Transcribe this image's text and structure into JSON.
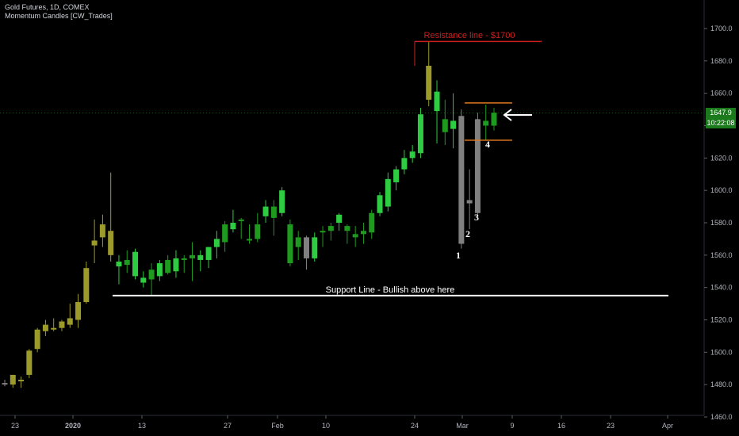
{
  "header": {
    "symbol_line": "Gold Futures, 1D, COMEX",
    "indicator_line": "Momentum Candles [CW_Trades]"
  },
  "price_axis": {
    "ticks": [
      "1700.0",
      "1680.0",
      "1660.0",
      "1640.0",
      "1620.0",
      "1600.0",
      "1580.0",
      "1560.0",
      "1540.0",
      "1520.0",
      "1500.0",
      "1480.0",
      "1460.0"
    ]
  },
  "last_price": {
    "value": "1647.9",
    "countdown": "10:22:08"
  },
  "time_axis": {
    "ticks": [
      "23",
      "2020",
      "13",
      "27",
      "Feb",
      "10",
      "24",
      "Mar",
      "9",
      "16",
      "23",
      "Apr"
    ]
  },
  "colors": {
    "bull": "#2ecc40",
    "bull_dark": "#1e9a1e",
    "bear": "#9c9a2a",
    "neutral": "#808080",
    "resistance": "#cc1f1f",
    "support": "#ffffff",
    "range": "#e07a1f",
    "grid_text": "#b2b5be"
  },
  "annotations": {
    "resistance_label": "Resistance line - $1700",
    "support_label": "Support Line - Bullish above here",
    "numbers": [
      "1",
      "2",
      "3",
      "4"
    ]
  },
  "chart_data": {
    "type": "candlestick",
    "title": "Gold Futures, 1D, COMEX",
    "ylim": [
      1455,
      1715
    ],
    "y_unit": "USD",
    "candles": [
      {
        "date": "2019-12-18",
        "open": 1481,
        "high": 1483,
        "low": 1479,
        "close": 1481,
        "color": "neutral"
      },
      {
        "date": "2019-12-19",
        "open": 1480,
        "high": 1486,
        "low": 1478,
        "close": 1486,
        "color": "bear"
      },
      {
        "date": "2019-12-20",
        "open": 1483,
        "high": 1485,
        "low": 1478,
        "close": 1483,
        "color": "bear"
      },
      {
        "date": "2019-12-23",
        "open": 1486,
        "high": 1502,
        "low": 1484,
        "close": 1501,
        "color": "bear"
      },
      {
        "date": "2019-12-24",
        "open": 1502,
        "high": 1515,
        "low": 1500,
        "close": 1514,
        "color": "bear"
      },
      {
        "date": "2019-12-26",
        "open": 1513,
        "high": 1520,
        "low": 1510,
        "close": 1517,
        "color": "bear"
      },
      {
        "date": "2019-12-27",
        "open": 1514,
        "high": 1521,
        "low": 1513,
        "close": 1515,
        "color": "bear"
      },
      {
        "date": "2019-12-30",
        "open": 1515,
        "high": 1520,
        "low": 1513,
        "close": 1519,
        "color": "bear"
      },
      {
        "date": "2019-12-31",
        "open": 1517,
        "high": 1530,
        "low": 1515,
        "close": 1521,
        "color": "bear"
      },
      {
        "date": "2020-01-02",
        "open": 1520,
        "high": 1536,
        "low": 1515,
        "close": 1531,
        "color": "bear"
      },
      {
        "date": "2020-01-03",
        "open": 1531,
        "high": 1556,
        "low": 1530,
        "close": 1552,
        "color": "bear"
      },
      {
        "date": "2020-01-06",
        "open": 1566,
        "high": 1582,
        "low": 1555,
        "close": 1569,
        "color": "bear"
      },
      {
        "date": "2020-01-07",
        "open": 1571,
        "high": 1585,
        "low": 1565,
        "close": 1579,
        "color": "bear"
      },
      {
        "date": "2020-01-08",
        "open": 1575,
        "high": 1611,
        "low": 1556,
        "close": 1560,
        "color": "bear"
      },
      {
        "date": "2020-01-09",
        "open": 1556,
        "high": 1560,
        "low": 1542,
        "close": 1553,
        "color": "bull"
      },
      {
        "date": "2020-01-10",
        "open": 1554,
        "high": 1563,
        "low": 1549,
        "close": 1557,
        "color": "bull_dark"
      },
      {
        "date": "2020-01-13",
        "open": 1562,
        "high": 1564,
        "low": 1545,
        "close": 1547,
        "color": "bull"
      },
      {
        "date": "2020-01-14",
        "open": 1546,
        "high": 1550,
        "low": 1540,
        "close": 1543,
        "color": "bull"
      },
      {
        "date": "2020-01-15",
        "open": 1545,
        "high": 1555,
        "low": 1535,
        "close": 1551,
        "color": "bull_dark"
      },
      {
        "date": "2020-01-16",
        "open": 1547,
        "high": 1557,
        "low": 1544,
        "close": 1555,
        "color": "bull"
      },
      {
        "date": "2020-01-17",
        "open": 1557,
        "high": 1560,
        "low": 1548,
        "close": 1549,
        "color": "bull_dark"
      },
      {
        "date": "2020-01-21",
        "open": 1550,
        "high": 1563,
        "low": 1546,
        "close": 1558,
        "color": "bull"
      },
      {
        "date": "2020-01-22",
        "open": 1558,
        "high": 1560,
        "low": 1549,
        "close": 1557,
        "color": "bull_dark"
      },
      {
        "date": "2020-01-23",
        "open": 1558,
        "high": 1568,
        "low": 1544,
        "close": 1560,
        "color": "bull_dark"
      },
      {
        "date": "2020-01-24",
        "open": 1560,
        "high": 1563,
        "low": 1550,
        "close": 1557,
        "color": "bull"
      },
      {
        "date": "2020-01-27",
        "open": 1557,
        "high": 1565,
        "low": 1552,
        "close": 1565,
        "color": "bull"
      },
      {
        "date": "2020-01-28",
        "open": 1565,
        "high": 1575,
        "low": 1558,
        "close": 1570,
        "color": "bull"
      },
      {
        "date": "2020-01-29",
        "open": 1568,
        "high": 1581,
        "low": 1562,
        "close": 1579,
        "color": "bull_dark"
      },
      {
        "date": "2020-01-30",
        "open": 1576,
        "high": 1588,
        "low": 1574,
        "close": 1580,
        "color": "bull"
      },
      {
        "date": "2020-01-31",
        "open": 1582,
        "high": 1583,
        "low": 1570,
        "close": 1581,
        "color": "bull_dark"
      },
      {
        "date": "2020-02-03",
        "open": 1570,
        "high": 1579,
        "low": 1567,
        "close": 1569,
        "color": "bull_dark"
      },
      {
        "date": "2020-02-04",
        "open": 1570,
        "high": 1586,
        "low": 1568,
        "close": 1579,
        "color": "bull_dark"
      },
      {
        "date": "2020-02-05",
        "open": 1584,
        "high": 1594,
        "low": 1580,
        "close": 1590,
        "color": "bull"
      },
      {
        "date": "2020-02-06",
        "open": 1583,
        "high": 1594,
        "low": 1572,
        "close": 1590,
        "color": "bull_dark"
      },
      {
        "date": "2020-02-07",
        "open": 1586,
        "high": 1602,
        "low": 1584,
        "close": 1600,
        "color": "bull"
      },
      {
        "date": "2020-02-10",
        "open": 1579,
        "high": 1582,
        "low": 1553,
        "close": 1555,
        "color": "bull_dark"
      },
      {
        "date": "2020-02-11",
        "open": 1571,
        "high": 1575,
        "low": 1557,
        "close": 1565,
        "color": "bull_dark"
      },
      {
        "date": "2020-02-12",
        "open": 1571,
        "high": 1572,
        "low": 1551,
        "close": 1558,
        "color": "neutral"
      },
      {
        "date": "2020-02-13",
        "open": 1571,
        "high": 1574,
        "low": 1556,
        "close": 1558,
        "color": "bull"
      },
      {
        "date": "2020-02-14",
        "open": 1574,
        "high": 1578,
        "low": 1565,
        "close": 1575,
        "color": "bull_dark"
      },
      {
        "date": "2020-02-17",
        "open": 1575,
        "high": 1580,
        "low": 1569,
        "close": 1578,
        "color": "bull_dark"
      },
      {
        "date": "2020-02-18",
        "open": 1580,
        "high": 1586,
        "low": 1575,
        "close": 1585,
        "color": "bull"
      },
      {
        "date": "2020-02-19",
        "open": 1575,
        "high": 1579,
        "low": 1567,
        "close": 1578,
        "color": "bull_dark"
      },
      {
        "date": "2020-02-20",
        "open": 1571,
        "high": 1578,
        "low": 1565,
        "close": 1573,
        "color": "bull_dark"
      },
      {
        "date": "2020-02-21",
        "open": 1573,
        "high": 1580,
        "low": 1567,
        "close": 1575,
        "color": "bull_dark"
      },
      {
        "date": "2020-02-24",
        "open": 1574,
        "high": 1588,
        "low": 1570,
        "close": 1586,
        "color": "bull_dark"
      },
      {
        "date": "2020-02-25",
        "open": 1586,
        "high": 1599,
        "low": 1584,
        "close": 1597,
        "color": "bull"
      },
      {
        "date": "2020-02-26",
        "open": 1590,
        "high": 1611,
        "low": 1587,
        "close": 1607,
        "color": "bull"
      },
      {
        "date": "2020-02-27",
        "open": 1605,
        "high": 1615,
        "low": 1600,
        "close": 1613,
        "color": "bull"
      },
      {
        "date": "2020-02-28",
        "open": 1613,
        "high": 1625,
        "low": 1610,
        "close": 1620,
        "color": "bull"
      },
      {
        "date": "2020-03-02",
        "open": 1620,
        "high": 1628,
        "low": 1617,
        "close": 1624,
        "color": "bull"
      },
      {
        "date": "2020-03-03",
        "open": 1623,
        "high": 1651,
        "low": 1620,
        "close": 1647,
        "color": "bull"
      },
      {
        "date": "2020-03-04",
        "open": 1656,
        "high": 1692,
        "low": 1652,
        "close": 1677,
        "color": "bear"
      },
      {
        "date": "2020-03-05",
        "open": 1661,
        "high": 1668,
        "low": 1629,
        "close": 1649,
        "color": "bull"
      },
      {
        "date": "2020-03-06",
        "open": 1636,
        "high": 1656,
        "low": 1628,
        "close": 1644,
        "color": "bull_dark"
      },
      {
        "date": "2020-03-09",
        "open": 1638,
        "high": 1660,
        "low": 1626,
        "close": 1643,
        "color": "bull"
      },
      {
        "date": "2020-03-10",
        "open": 1646,
        "high": 1650,
        "low": 1564,
        "close": 1567,
        "color": "neutral"
      },
      {
        "date": "2020-03-11",
        "open": 1594,
        "high": 1613,
        "low": 1576,
        "close": 1592,
        "color": "neutral"
      },
      {
        "date": "2020-03-12",
        "open": 1586,
        "high": 1648,
        "low": 1584,
        "close": 1644,
        "color": "neutral"
      },
      {
        "date": "2020-03-13",
        "open": 1643,
        "high": 1653,
        "low": 1631,
        "close": 1640,
        "color": "bull_dark"
      },
      {
        "date": "2020-03-16",
        "open": 1640,
        "high": 1651,
        "low": 1637,
        "close": 1648,
        "color": "bull_dark"
      }
    ],
    "lines": [
      {
        "name": "resistance",
        "price": 1692,
        "from": "2020-03-04",
        "to": "2020-03-24"
      },
      {
        "name": "support",
        "price": 1535,
        "from": "2020-01-06",
        "to": "2020-04-03"
      },
      {
        "name": "range-top",
        "price": 1654,
        "from": "2020-03-12",
        "to": "2020-03-18"
      },
      {
        "name": "range-bottom",
        "price": 1631,
        "from": "2020-03-12",
        "to": "2020-03-18"
      }
    ],
    "last_price": 1647.9
  }
}
